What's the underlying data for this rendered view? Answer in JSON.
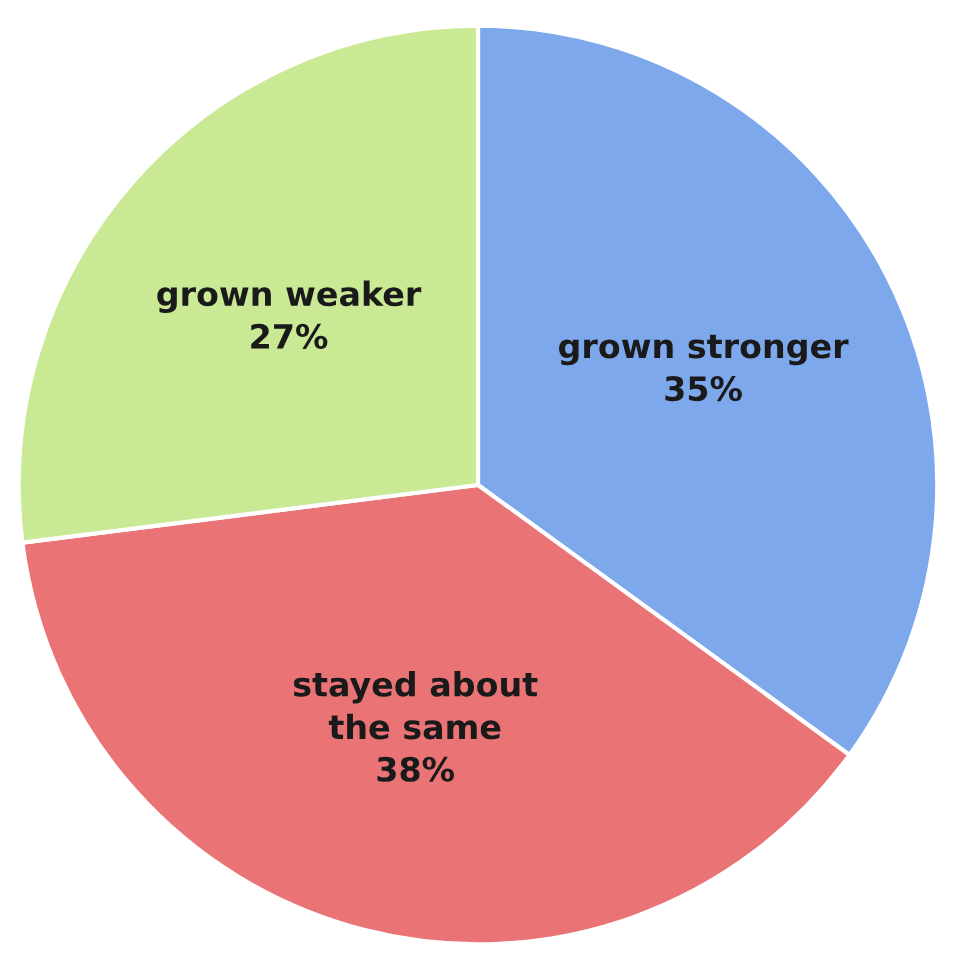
{
  "chart_data": {
    "type": "pie",
    "categories": [
      "grown stronger",
      "stayed about\nthe same",
      "grown weaker"
    ],
    "values": [
      35,
      38,
      27
    ],
    "value_labels": [
      "35%",
      "38%",
      "27%"
    ],
    "colors": [
      "#7ea8ec",
      "#ea7376",
      "#c9e994"
    ]
  }
}
